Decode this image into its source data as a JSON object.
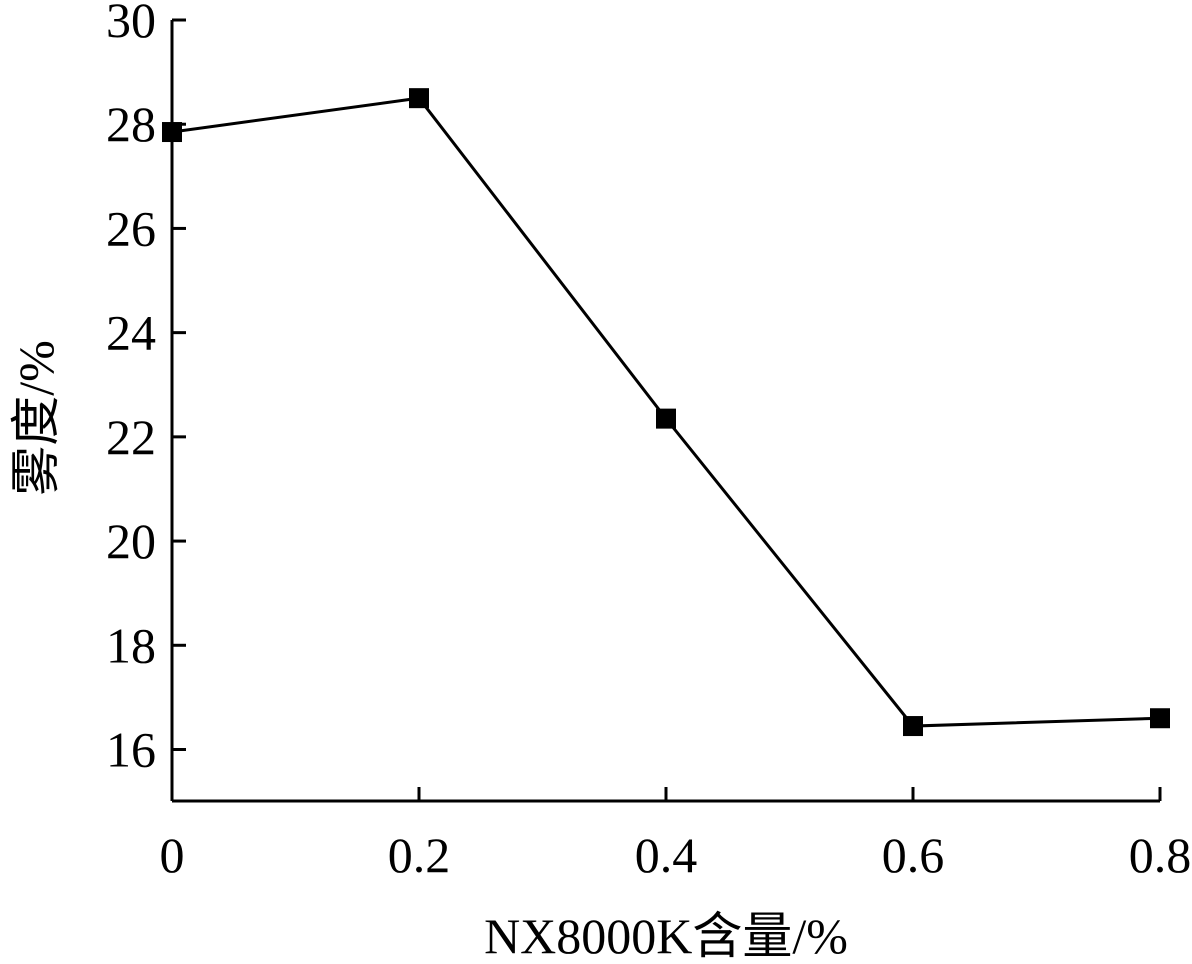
{
  "chart_data": {
    "type": "line",
    "title": "",
    "xlabel": "NX8000K含量/%",
    "ylabel": "雾度/%",
    "x": [
      0,
      0.2,
      0.4,
      0.6,
      0.8
    ],
    "x_tick_labels": [
      "0",
      "0.2",
      "0.4",
      "0.6",
      "0.8"
    ],
    "y_ticks": [
      16,
      18,
      20,
      22,
      24,
      26,
      28,
      30
    ],
    "y_tick_labels": [
      "16",
      "18",
      "20",
      "22",
      "24",
      "26",
      "28",
      "30"
    ],
    "xlim": [
      0,
      0.8
    ],
    "ylim": [
      15,
      30
    ],
    "grid": false,
    "series": [
      {
        "values": [
          27.85,
          28.5,
          22.35,
          16.45,
          16.6
        ],
        "marker": "square",
        "color": "#000000"
      }
    ]
  }
}
